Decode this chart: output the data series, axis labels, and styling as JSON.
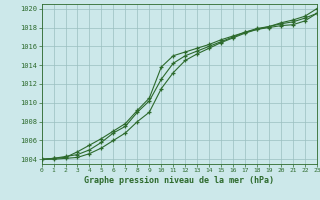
{
  "title": "Graphe pression niveau de la mer (hPa)",
  "bg_color": "#cce8ea",
  "grid_color": "#9bbfc0",
  "line_color": "#2d6a2d",
  "xlim": [
    0,
    23
  ],
  "ylim": [
    1003.5,
    1020.5
  ],
  "yticks": [
    1004,
    1006,
    1008,
    1010,
    1012,
    1014,
    1016,
    1018,
    1020
  ],
  "xticks": [
    0,
    1,
    2,
    3,
    4,
    5,
    6,
    7,
    8,
    9,
    10,
    11,
    12,
    13,
    14,
    15,
    16,
    17,
    18,
    19,
    20,
    21,
    22,
    23
  ],
  "series": [
    [
      1004.0,
      1004.1,
      1004.2,
      1004.8,
      1005.5,
      1006.2,
      1007.0,
      1007.8,
      1009.2,
      1010.5,
      1013.8,
      1015.0,
      1015.4,
      1015.8,
      1016.2,
      1016.7,
      1017.1,
      1017.5,
      1017.8,
      1018.0,
      1018.2,
      1018.3,
      1018.7,
      1019.5
    ],
    [
      1004.0,
      1004.1,
      1004.3,
      1004.5,
      1005.0,
      1005.8,
      1006.8,
      1007.5,
      1009.0,
      1010.2,
      1012.5,
      1014.2,
      1015.0,
      1015.5,
      1016.0,
      1016.5,
      1017.0,
      1017.5,
      1017.9,
      1018.1,
      1018.4,
      1018.6,
      1019.0,
      1019.5
    ],
    [
      1004.0,
      1004.0,
      1004.1,
      1004.2,
      1004.6,
      1005.2,
      1006.0,
      1006.8,
      1008.0,
      1009.0,
      1011.5,
      1013.2,
      1014.5,
      1015.2,
      1015.8,
      1016.4,
      1016.9,
      1017.4,
      1017.8,
      1018.1,
      1018.5,
      1018.8,
      1019.2,
      1020.0
    ]
  ]
}
